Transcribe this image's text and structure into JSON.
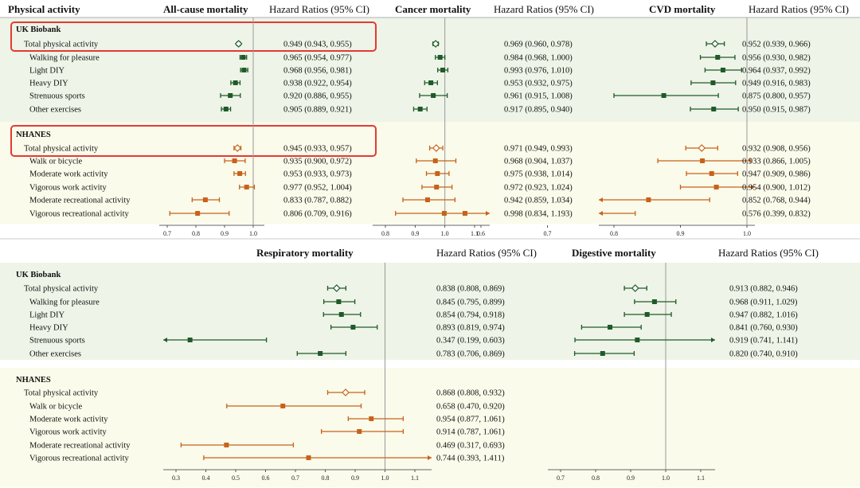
{
  "colors": {
    "uk": "#1f5a2a",
    "nh": "#c8621a",
    "uk_bg": "#eef4e7",
    "nh_bg": "#fafbea",
    "refline": "#999999",
    "highlight": "#e53935"
  },
  "top_headers": {
    "activity": "Physical activity",
    "hr_label": "Hazard Ratios (95% CI)",
    "all_cause": "All-cause mortality",
    "cancer": "Cancer mortality",
    "cvd": "CVD mortality"
  },
  "bottom_headers": {
    "respiratory": "Respiratory mortality",
    "digestive": "Digestive mortality",
    "hr_label": "Hazard Ratios (95% CI)"
  },
  "groups": {
    "uk": "UK Biobank",
    "nh": "NHANES"
  },
  "uk_rows": [
    "Total physical activity",
    "Walking for pleasure",
    "Light DIY",
    "Heavy DIY",
    "Strenuous sports",
    "Other exercises"
  ],
  "nh_rows": [
    "Total physical activity",
    "Walk or bicycle",
    "Moderate work activity",
    "Vigorous work activity",
    "Moderate recreational activity",
    "Vigorous recreational activity"
  ],
  "chart_data": [
    {
      "type": "forest",
      "title": "All-cause mortality",
      "xticks": [
        0.7,
        0.8,
        0.9,
        1.0
      ],
      "uk": [
        {
          "hr": 0.949,
          "lo": 0.943,
          "hi": 0.955,
          "text": "0.949 (0.943, 0.955)"
        },
        {
          "hr": 0.965,
          "lo": 0.954,
          "hi": 0.977,
          "text": "0.965 (0.954, 0.977)"
        },
        {
          "hr": 0.968,
          "lo": 0.956,
          "hi": 0.981,
          "text": "0.968 (0.956, 0.981)"
        },
        {
          "hr": 0.938,
          "lo": 0.922,
          "hi": 0.954,
          "text": "0.938 (0.922, 0.954)"
        },
        {
          "hr": 0.92,
          "lo": 0.886,
          "hi": 0.955,
          "text": "0.920 (0.886, 0.955)"
        },
        {
          "hr": 0.905,
          "lo": 0.889,
          "hi": 0.921,
          "text": "0.905 (0.889, 0.921)"
        }
      ],
      "nh": [
        {
          "hr": 0.945,
          "lo": 0.933,
          "hi": 0.957,
          "text": "0.945 (0.933, 0.957)"
        },
        {
          "hr": 0.935,
          "lo": 0.9,
          "hi": 0.972,
          "text": "0.935 (0.900, 0.972)"
        },
        {
          "hr": 0.953,
          "lo": 0.933,
          "hi": 0.973,
          "text": "0.953 (0.933, 0.973)"
        },
        {
          "hr": 0.977,
          "lo": 0.952,
          "hi": 1.004,
          "text": "0.977 (0.952, 1.004)"
        },
        {
          "hr": 0.833,
          "lo": 0.787,
          "hi": 0.882,
          "text": "0.833 (0.787, 0.882)"
        },
        {
          "hr": 0.806,
          "lo": 0.709,
          "hi": 0.916,
          "text": "0.806 (0.709, 0.916)"
        }
      ]
    },
    {
      "type": "forest",
      "title": "Cancer mortality",
      "xticks": [
        0.8,
        0.9,
        1.0,
        1.1
      ],
      "uk": [
        {
          "hr": 0.969,
          "lo": 0.96,
          "hi": 0.978,
          "text": "0.969 (0.960, 0.978)"
        },
        {
          "hr": 0.984,
          "lo": 0.968,
          "hi": 1.0,
          "text": "0.984 (0.968, 1.000)"
        },
        {
          "hr": 0.993,
          "lo": 0.976,
          "hi": 1.01,
          "text": "0.993 (0.976, 1.010)"
        },
        {
          "hr": 0.953,
          "lo": 0.932,
          "hi": 0.975,
          "text": "0.953 (0.932, 0.975)"
        },
        {
          "hr": 0.961,
          "lo": 0.915,
          "hi": 1.008,
          "text": "0.961 (0.915, 1.008)"
        },
        {
          "hr": 0.917,
          "lo": 0.895,
          "hi": 0.94,
          "text": "0.917 (0.895, 0.940)"
        }
      ],
      "nh": [
        {
          "hr": 0.971,
          "lo": 0.949,
          "hi": 0.993,
          "text": "0.971 (0.949, 0.993)"
        },
        {
          "hr": 0.968,
          "lo": 0.904,
          "hi": 1.037,
          "text": "0.968 (0.904, 1.037)"
        },
        {
          "hr": 0.975,
          "lo": 0.938,
          "hi": 1.014,
          "text": "0.975 (0.938, 1.014)"
        },
        {
          "hr": 0.972,
          "lo": 0.923,
          "hi": 1.024,
          "text": "0.972 (0.923, 1.024)"
        },
        {
          "hr": 0.942,
          "lo": 0.859,
          "hi": 1.034,
          "text": "0.942 (0.859, 1.034)"
        },
        {
          "hr": 0.998,
          "lo": 0.834,
          "hi": 1.193,
          "text": "0.998 (0.834, 1.193)"
        }
      ]
    },
    {
      "type": "forest",
      "title": "CVD mortality",
      "xticks": [
        0.6,
        0.7,
        0.8,
        0.9,
        1.0
      ],
      "uk": [
        {
          "hr": 0.952,
          "lo": 0.939,
          "hi": 0.966,
          "text": "0.952 (0.939, 0.966)"
        },
        {
          "hr": 0.956,
          "lo": 0.93,
          "hi": 0.982,
          "text": "0.956 (0.930, 0.982)"
        },
        {
          "hr": 0.964,
          "lo": 0.937,
          "hi": 0.992,
          "text": "0.964 (0.937, 0.992)"
        },
        {
          "hr": 0.949,
          "lo": 0.916,
          "hi": 0.983,
          "text": "0.949 (0.916, 0.983)"
        },
        {
          "hr": 0.875,
          "lo": 0.8,
          "hi": 0.957,
          "text": "0.875 (0.800, 0.957)"
        },
        {
          "hr": 0.95,
          "lo": 0.915,
          "hi": 0.987,
          "text": "0.950 (0.915, 0.987)"
        }
      ],
      "nh": [
        {
          "hr": 0.932,
          "lo": 0.908,
          "hi": 0.956,
          "text": "0.932 (0.908, 0.956)"
        },
        {
          "hr": 0.933,
          "lo": 0.866,
          "hi": 1.005,
          "text": "0.933 (0.866, 1.005)"
        },
        {
          "hr": 0.947,
          "lo": 0.909,
          "hi": 0.986,
          "text": "0.947 (0.909, 0.986)"
        },
        {
          "hr": 0.954,
          "lo": 0.9,
          "hi": 1.012,
          "text": "0.954 (0.900, 1.012)"
        },
        {
          "hr": 0.852,
          "lo": 0.768,
          "hi": 0.944,
          "text": "0.852 (0.768, 0.944)"
        },
        {
          "hr": 0.576,
          "lo": 0.399,
          "hi": 0.832,
          "text": "0.576 (0.399, 0.832)"
        }
      ]
    },
    {
      "type": "forest",
      "title": "Respiratory mortality",
      "xticks": [
        0.3,
        0.4,
        0.5,
        0.6,
        0.7,
        0.8,
        0.9,
        1.0,
        1.1
      ],
      "uk": [
        {
          "hr": 0.838,
          "lo": 0.808,
          "hi": 0.869,
          "text": "0.838 (0.808, 0.869)"
        },
        {
          "hr": 0.845,
          "lo": 0.795,
          "hi": 0.899,
          "text": "0.845 (0.795, 0.899)"
        },
        {
          "hr": 0.854,
          "lo": 0.794,
          "hi": 0.918,
          "text": "0.854 (0.794, 0.918)"
        },
        {
          "hr": 0.893,
          "lo": 0.819,
          "hi": 0.974,
          "text": "0.893 (0.819, 0.974)"
        },
        {
          "hr": 0.347,
          "lo": 0.199,
          "hi": 0.603,
          "text": "0.347 (0.199, 0.603)"
        },
        {
          "hr": 0.783,
          "lo": 0.706,
          "hi": 0.869,
          "text": "0.783 (0.706, 0.869)"
        }
      ],
      "nh": [
        {
          "hr": 0.868,
          "lo": 0.808,
          "hi": 0.932,
          "text": "0.868 (0.808, 0.932)"
        },
        {
          "hr": 0.658,
          "lo": 0.47,
          "hi": 0.92,
          "text": "0.658 (0.470, 0.920)"
        },
        {
          "hr": 0.954,
          "lo": 0.877,
          "hi": 1.061,
          "text": "0.954 (0.877, 1.061)"
        },
        {
          "hr": 0.914,
          "lo": 0.787,
          "hi": 1.061,
          "text": "0.914 (0.787, 1.061)"
        },
        {
          "hr": 0.469,
          "lo": 0.317,
          "hi": 0.693,
          "text": "0.469 (0.317, 0.693)"
        },
        {
          "hr": 0.744,
          "lo": 0.393,
          "hi": 1.411,
          "text": "0.744 (0.393, 1.411)"
        }
      ]
    },
    {
      "type": "forest",
      "title": "Digestive mortality",
      "xticks": [
        0.7,
        0.8,
        0.9,
        1.0,
        1.1
      ],
      "uk": [
        {
          "hr": 0.913,
          "lo": 0.882,
          "hi": 0.946,
          "text": "0.913 (0.882, 0.946)"
        },
        {
          "hr": 0.968,
          "lo": 0.911,
          "hi": 1.029,
          "text": "0.968 (0.911, 1.029)"
        },
        {
          "hr": 0.947,
          "lo": 0.882,
          "hi": 1.016,
          "text": "0.947 (0.882, 1.016)"
        },
        {
          "hr": 0.841,
          "lo": 0.76,
          "hi": 0.93,
          "text": "0.841 (0.760, 0.930)"
        },
        {
          "hr": 0.919,
          "lo": 0.741,
          "hi": 1.141,
          "text": "0.919 (0.741, 1.141)"
        },
        {
          "hr": 0.82,
          "lo": 0.74,
          "hi": 0.91,
          "text": "0.820 (0.740, 0.910)"
        }
      ]
    }
  ]
}
